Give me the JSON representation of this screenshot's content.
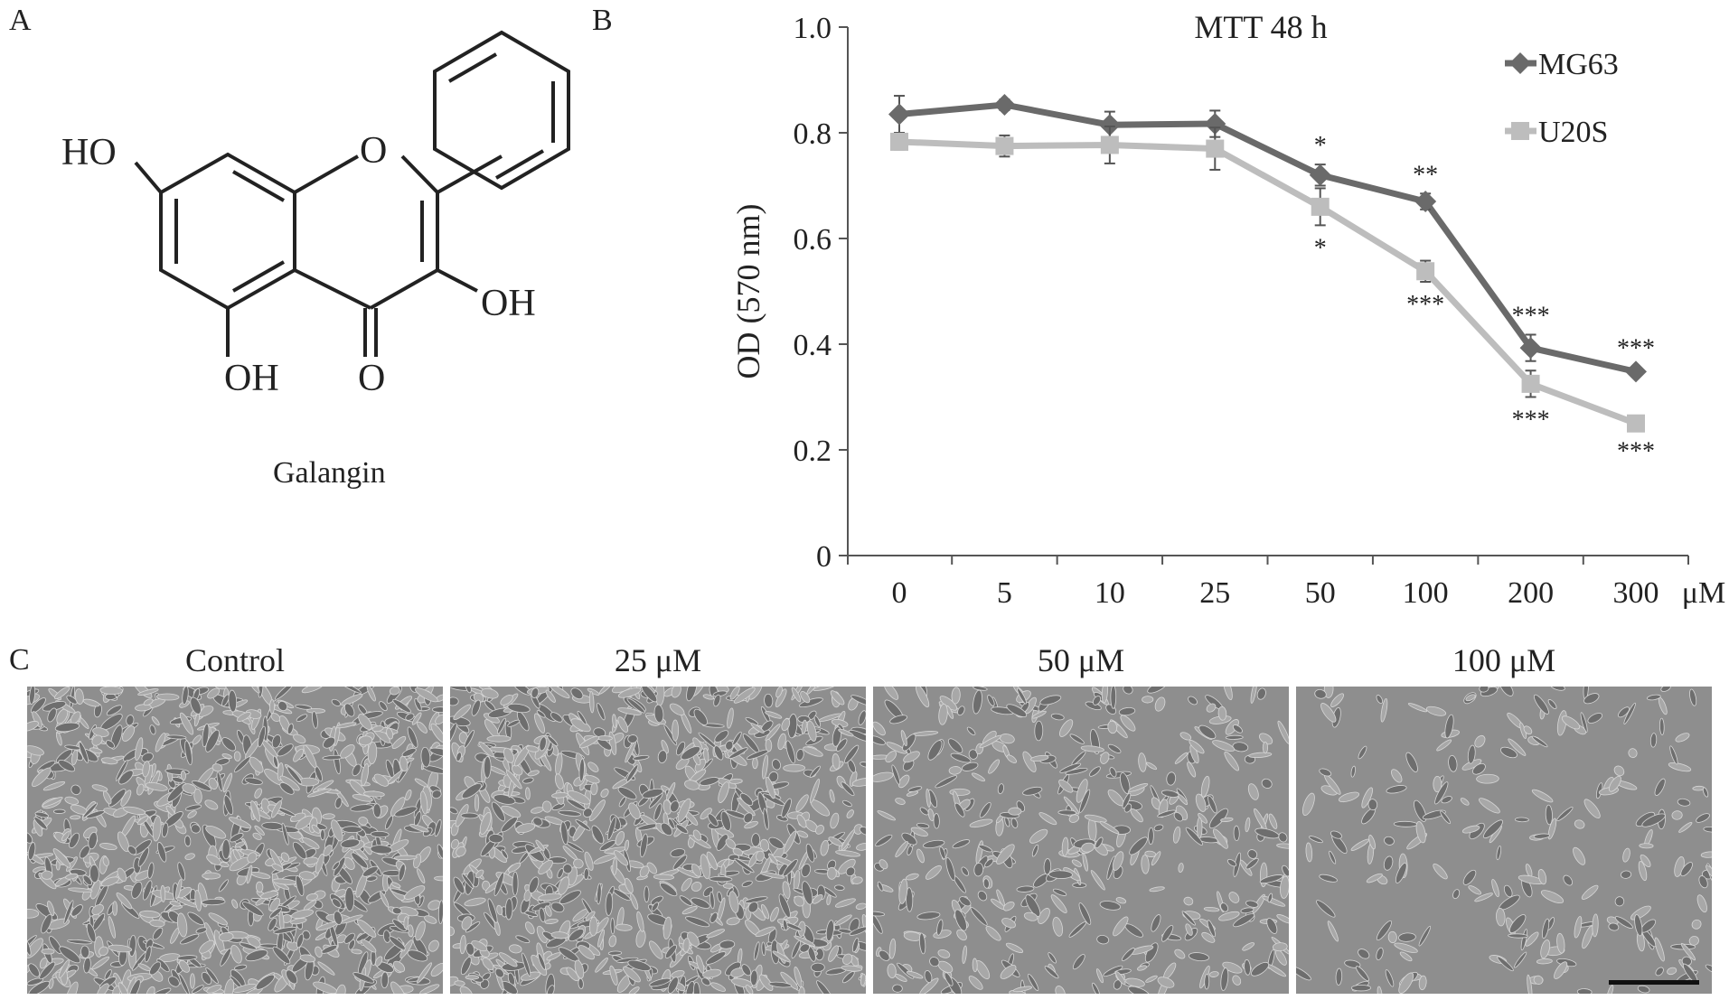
{
  "panels": {
    "a": "A",
    "b": "B",
    "c": "C"
  },
  "structure": {
    "labels": {
      "ho": "HO",
      "oh_right": "OH",
      "oh_bottom": "OH",
      "ring_o": "O",
      "carbonyl_o": "O"
    },
    "name": "Galangin"
  },
  "chart_data": {
    "type": "line",
    "title": "MTT 48 h",
    "xlabel": "μM",
    "ylabel": "OD (570 nm)",
    "categories": [
      "0",
      "5",
      "10",
      "25",
      "50",
      "100",
      "200",
      "300"
    ],
    "ylim": [
      0,
      1.0
    ],
    "yticks": [
      "0",
      "0.2",
      "0.4",
      "0.6",
      "0.8",
      "1.0"
    ],
    "grid": false,
    "legend": "top-right",
    "series": [
      {
        "name": "MG63",
        "color": "#6a6a6a",
        "marker": "diamond",
        "values": [
          0.835,
          0.853,
          0.815,
          0.817,
          0.72,
          0.67,
          0.393,
          0.348
        ],
        "errors": [
          0.035,
          0.01,
          0.025,
          0.025,
          0.02,
          0.015,
          0.025,
          0.008
        ],
        "annotations": [
          "",
          "",
          "",
          "",
          "*",
          "**",
          "***",
          "***"
        ]
      },
      {
        "name": "U20S",
        "color": "#bdbdbd",
        "marker": "square",
        "values": [
          0.783,
          0.775,
          0.777,
          0.77,
          0.66,
          0.538,
          0.325,
          0.25
        ],
        "errors": [
          0.015,
          0.02,
          0.035,
          0.04,
          0.035,
          0.02,
          0.025,
          0.01
        ],
        "annotations": [
          "",
          "",
          "",
          "",
          "*",
          "***",
          "***",
          "***"
        ]
      }
    ]
  },
  "micrographs": [
    {
      "title": "Control",
      "density": 1.0
    },
    {
      "title": "25 μM",
      "density": 0.95
    },
    {
      "title": "50 μM",
      "density": 0.6
    },
    {
      "title": "100 μM",
      "density": 0.4
    }
  ]
}
